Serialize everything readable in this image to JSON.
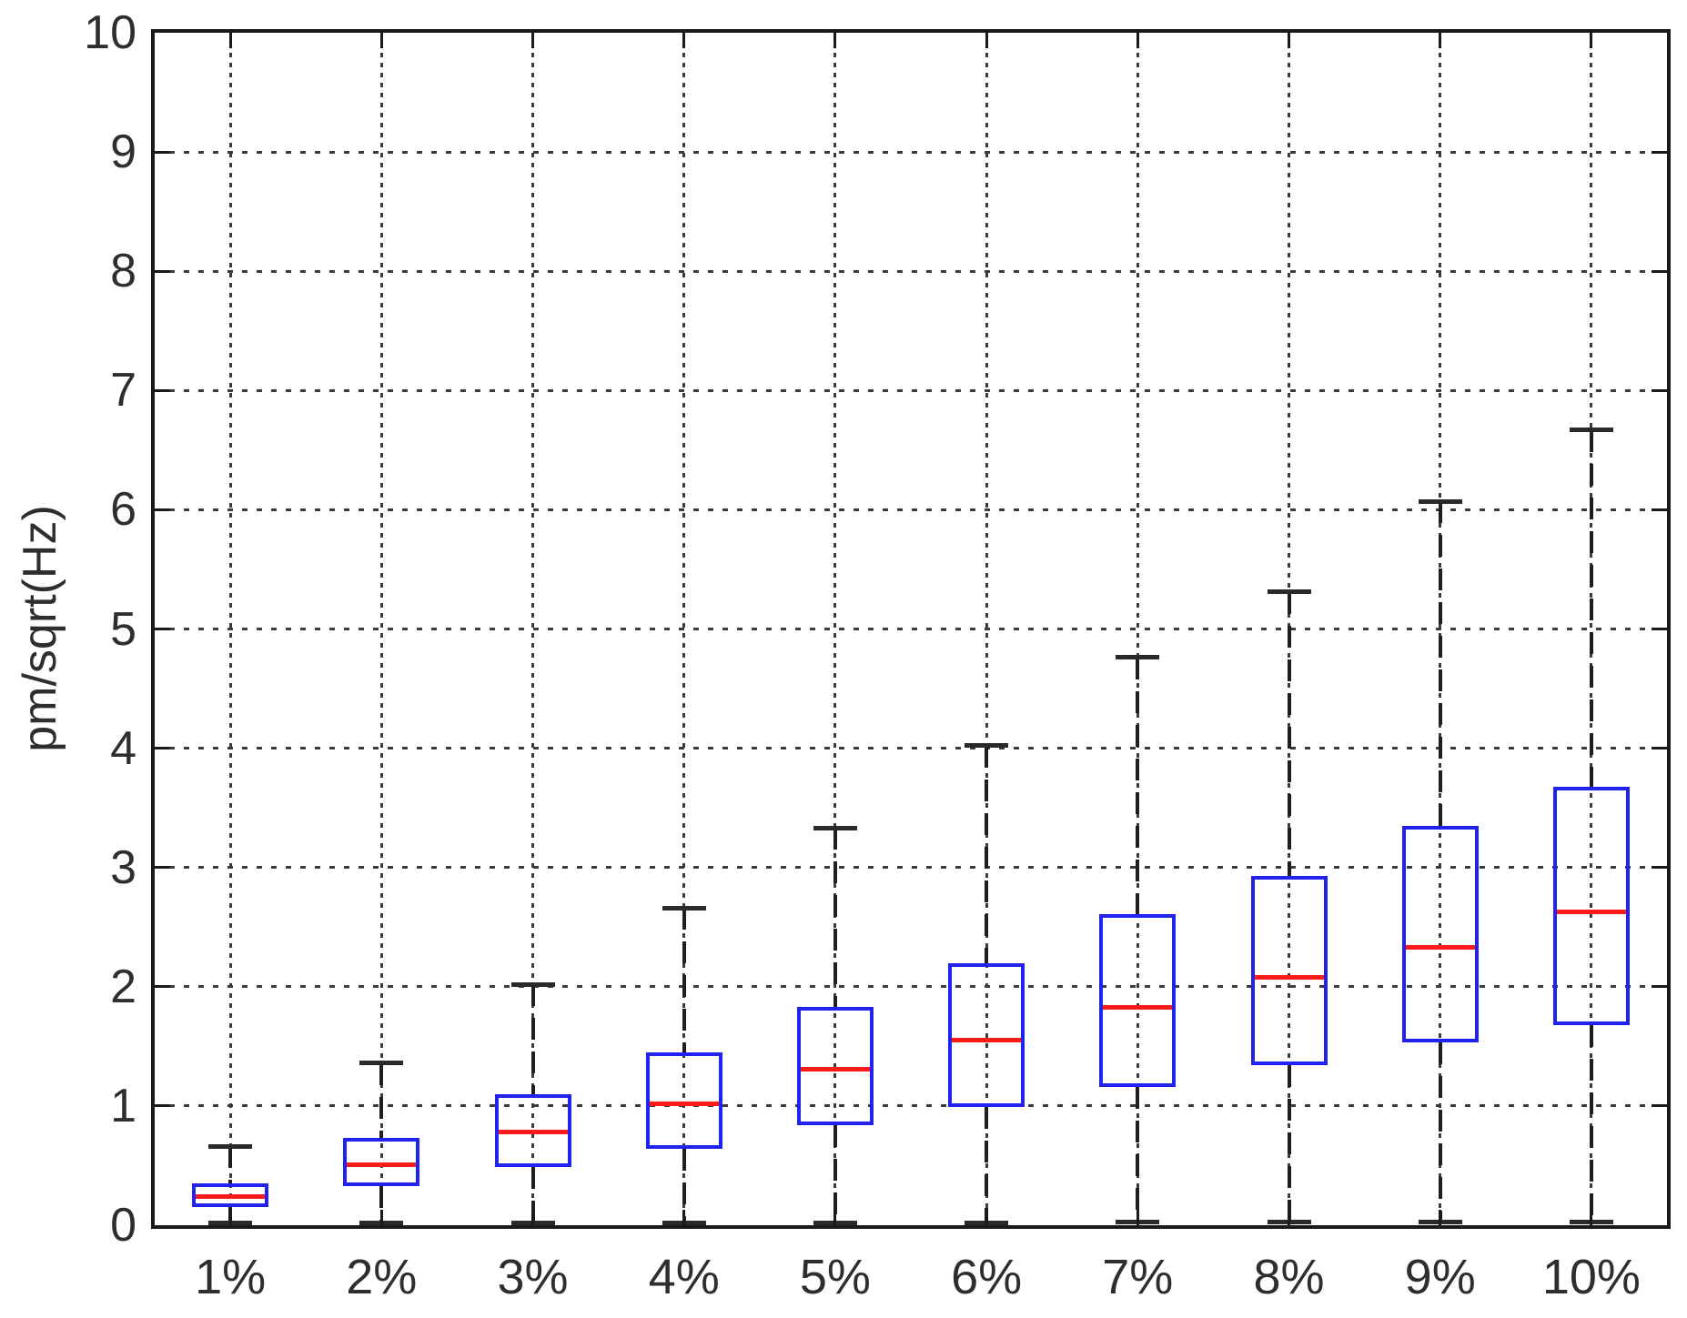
{
  "figure": {
    "background": "#ffffff"
  },
  "chart_data": {
    "type": "box",
    "title": "",
    "xlabel": "",
    "ylabel": "pm/sqrt(Hz)",
    "categories": [
      "1%",
      "2%",
      "3%",
      "4%",
      "5%",
      "6%",
      "7%",
      "8%",
      "9%",
      "10%"
    ],
    "ylim": [
      0,
      10
    ],
    "yticks": [
      0,
      1,
      2,
      3,
      4,
      5,
      6,
      7,
      8,
      9,
      10
    ],
    "grid": {
      "horizontal": true,
      "vertical": true,
      "style": "dotted"
    },
    "legend": "none",
    "boxes": [
      {
        "category": "1%",
        "whisker_low": 0.02,
        "q1": 0.15,
        "median": 0.24,
        "q3": 0.35,
        "whisker_high": 0.66
      },
      {
        "category": "2%",
        "whisker_low": 0.02,
        "q1": 0.33,
        "median": 0.51,
        "q3": 0.73,
        "whisker_high": 1.36
      },
      {
        "category": "3%",
        "whisker_low": 0.02,
        "q1": 0.49,
        "median": 0.78,
        "q3": 1.1,
        "whisker_high": 2.02
      },
      {
        "category": "4%",
        "whisker_low": 0.02,
        "q1": 0.64,
        "median": 1.02,
        "q3": 1.45,
        "whisker_high": 2.66
      },
      {
        "category": "5%",
        "whisker_low": 0.02,
        "q1": 0.84,
        "median": 1.31,
        "q3": 1.83,
        "whisker_high": 3.33
      },
      {
        "category": "6%",
        "whisker_low": 0.02,
        "q1": 0.99,
        "median": 1.55,
        "q3": 2.2,
        "whisker_high": 4.02
      },
      {
        "category": "7%",
        "whisker_low": 0.03,
        "q1": 1.16,
        "median": 1.83,
        "q3": 2.61,
        "whisker_high": 4.76
      },
      {
        "category": "8%",
        "whisker_low": 0.03,
        "q1": 1.34,
        "median": 2.08,
        "q3": 2.93,
        "whisker_high": 5.31
      },
      {
        "category": "9%",
        "whisker_low": 0.03,
        "q1": 1.53,
        "median": 2.33,
        "q3": 3.35,
        "whisker_high": 6.07
      },
      {
        "category": "10%",
        "whisker_low": 0.03,
        "q1": 1.68,
        "median": 2.63,
        "q3": 3.68,
        "whisker_high": 6.67
      }
    ],
    "colors": {
      "box": "#2222ee",
      "median": "#ff1a1a",
      "whisker": "#1f1f1f",
      "cap": "#2a2a2a",
      "grid": "#3c3c3c",
      "axis": "#1a1a1a",
      "text": "#2e2e2e"
    }
  }
}
